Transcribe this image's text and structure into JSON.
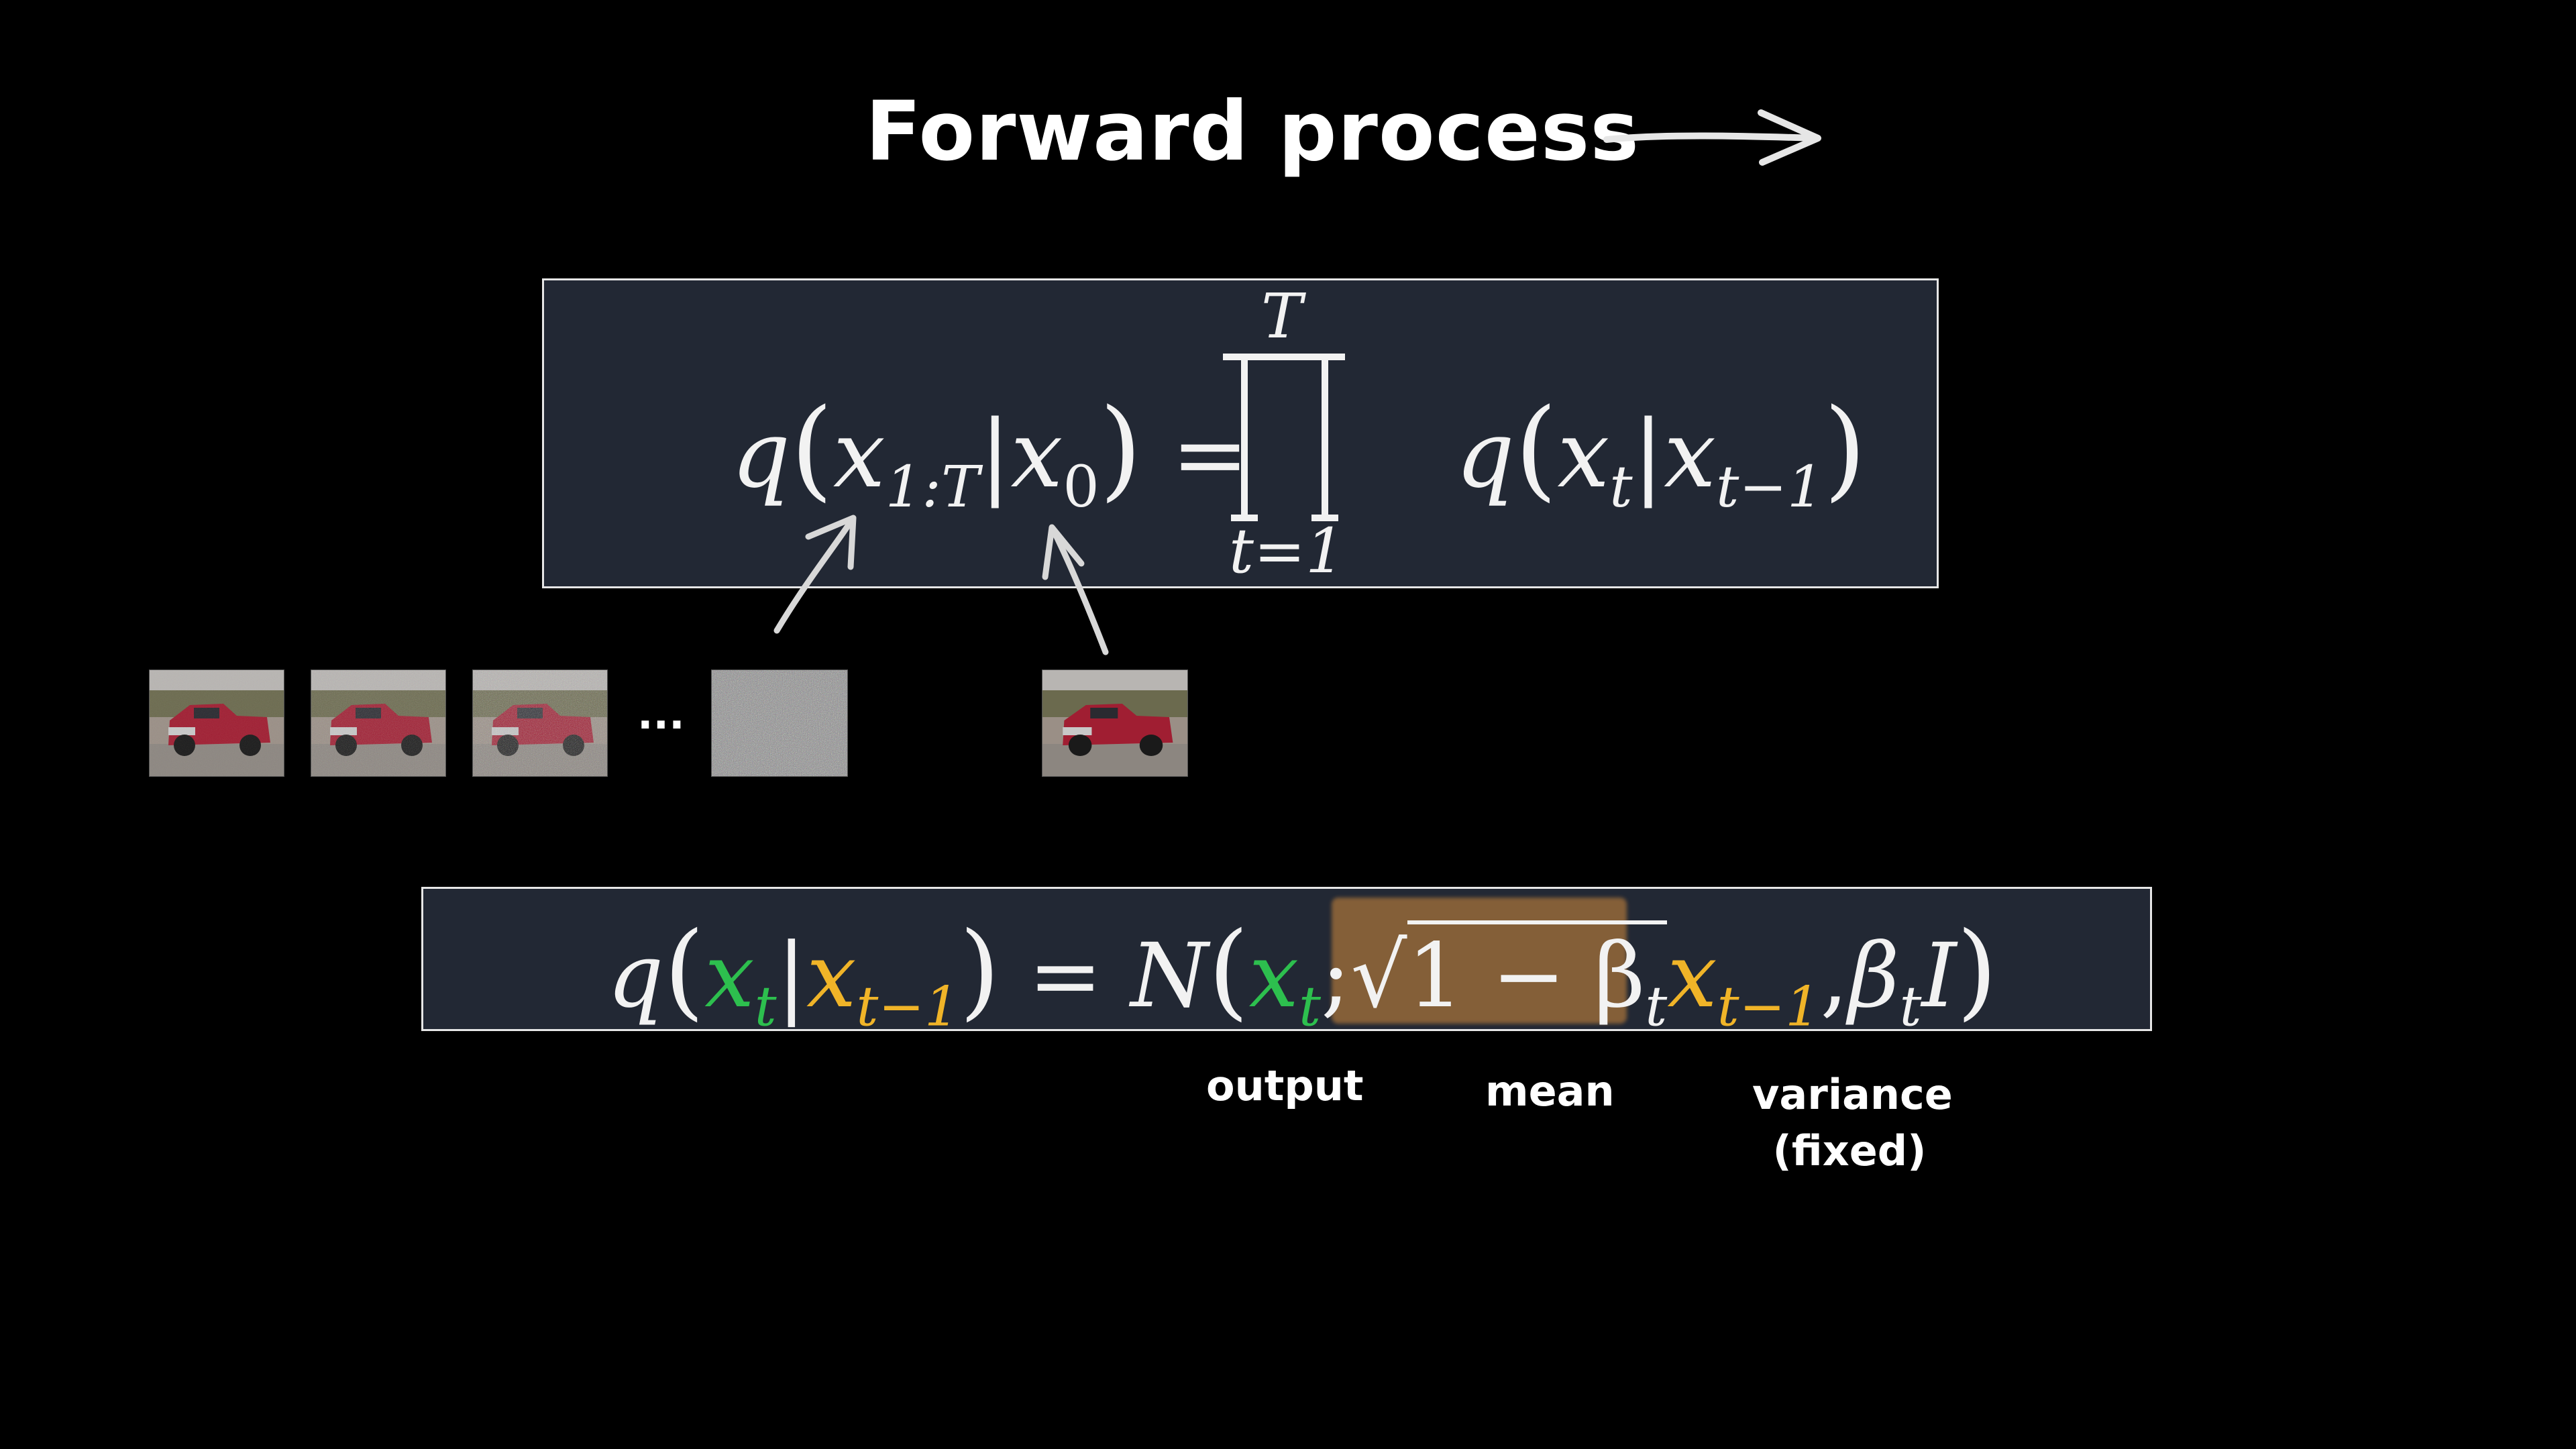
{
  "title": "Forward process",
  "equation1": {
    "lhs_q": "q",
    "lhs_x": "x",
    "lhs_sub": "1:T",
    "bar": "|",
    "lhs_x0": "x",
    "lhs_x0_sub": "0",
    "equals": "=",
    "prod_upper": "T",
    "prod_lower": "t=1",
    "rhs_q": "q",
    "rhs_x": "x",
    "rhs_sub": "t",
    "rhs_x2": "x",
    "rhs_sub2": "t−1"
  },
  "equation2": {
    "q": "q",
    "xt": "x",
    "xt_sub": "t",
    "bar": "|",
    "xprev": "x",
    "xprev_sub": "t−1",
    "equals": "=",
    "N": "N",
    "out_x": "x",
    "out_sub": "t",
    "semicolon": ";",
    "sqrt_body": "1 − β",
    "beta_sub": "t",
    "mean_x": "x",
    "mean_sub": "t−1",
    "comma": ",",
    "var_beta": "β",
    "var_sub": "t",
    "var_I": "I"
  },
  "labels": {
    "output": "output",
    "mean": "mean",
    "variance_line1": "variance",
    "variance_line2": "(fixed)"
  },
  "ellipsis": "...",
  "colors": {
    "background": "#000000",
    "panel": "#222834",
    "green": "#2dbf4e",
    "yellow": "#f0b428",
    "highlight": "#e6963c"
  },
  "images": [
    "car-noise-step-1",
    "car-noise-step-2",
    "car-noise-step-3",
    "pure-noise",
    "original-car"
  ]
}
